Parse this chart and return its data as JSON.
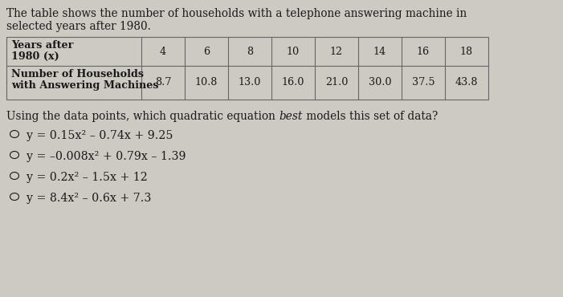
{
  "intro_text_line1": "The table shows the number of households with a telephone answering machine in",
  "intro_text_line2": "selected years after 1980.",
  "col_header_left_line1": "Years after",
  "col_header_left_line2": "1980 (x)",
  "col_header_right_line1": "Number of Households",
  "col_header_right_line2": "with Answering Machines",
  "x_values": [
    "4",
    "6",
    "8",
    "10",
    "12",
    "14",
    "16",
    "18"
  ],
  "y_values": [
    "8.7",
    "10.8",
    "13.0",
    "16.0",
    "21.0",
    "30.0",
    "37.5",
    "43.8"
  ],
  "question_pre": "Using the data points, which quadratic equation ",
  "question_italic": "best",
  "question_post": " models this set of data?",
  "options": [
    "y = 0.15x² – 0.74x + 9.25",
    "y = –0.008x² + 0.79x – 1.39",
    "y = 0.2x² – 1.5x + 12",
    "y = 8.4x² – 0.6x + 7.3"
  ],
  "bg_color": "#cdc9c3",
  "text_color": "#1a1a1a",
  "font_size_intro": 9.8,
  "font_size_table_header": 9.2,
  "font_size_table_data": 9.2,
  "font_size_question": 9.8,
  "font_size_options": 10.2
}
